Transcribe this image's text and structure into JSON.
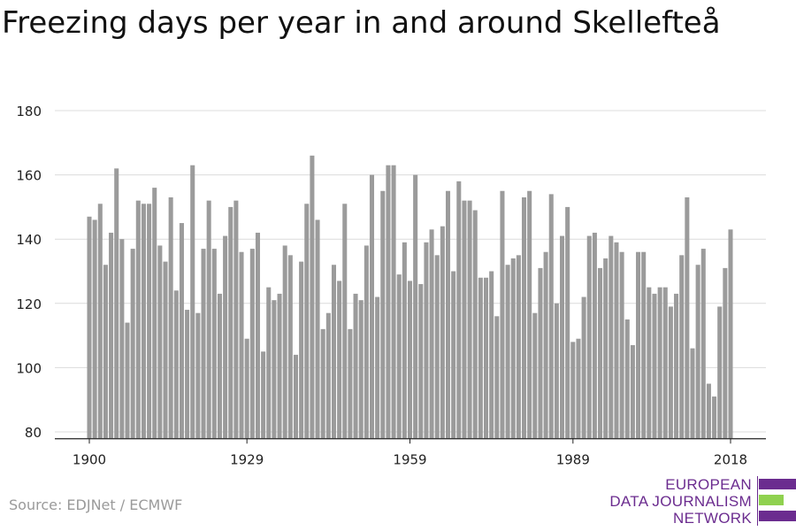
{
  "title": "Freezing days per year in and around Skellefteå",
  "source": "Source: EDJNet / ECMWF",
  "logo": {
    "line1": "EUROPEAN",
    "line2": "DATA JOURNALISM",
    "line3": "NETWORK",
    "colors": [
      "#6b2c8f",
      "#8fd14f",
      "#6b2c8f"
    ]
  },
  "chart_data": {
    "type": "bar",
    "title": "Freezing days per year in and around Skellefteå",
    "xlabel": "",
    "ylabel": "",
    "ylim": [
      78,
      180
    ],
    "yticks": [
      80,
      100,
      120,
      140,
      160,
      180
    ],
    "xticks": [
      "1900",
      "1929",
      "1959",
      "1989",
      "2018"
    ],
    "grid": true,
    "bar_color": "#9b9b9b",
    "x_start": 1900,
    "x_end": 2018,
    "values": [
      147,
      146,
      151,
      132,
      142,
      162,
      140,
      114,
      137,
      152,
      151,
      151,
      156,
      138,
      133,
      153,
      124,
      145,
      118,
      163,
      117,
      137,
      152,
      137,
      123,
      141,
      150,
      152,
      136,
      109,
      137,
      142,
      105,
      125,
      121,
      123,
      138,
      135,
      104,
      133,
      151,
      166,
      146,
      112,
      117,
      132,
      127,
      151,
      112,
      123,
      121,
      138,
      160,
      122,
      155,
      163,
      163,
      129,
      139,
      127,
      160,
      126,
      139,
      143,
      135,
      144,
      155,
      130,
      158,
      152,
      152,
      149,
      128,
      128,
      130,
      116,
      155,
      132,
      134,
      135,
      153,
      155,
      117,
      131,
      136,
      154,
      120,
      141,
      150,
      108,
      109,
      122,
      141,
      142,
      131,
      134,
      141,
      139,
      136,
      115,
      107,
      136,
      136,
      125,
      123,
      125,
      125,
      119,
      123,
      135,
      153,
      106,
      132,
      137,
      95,
      91,
      119,
      131,
      143
    ]
  }
}
